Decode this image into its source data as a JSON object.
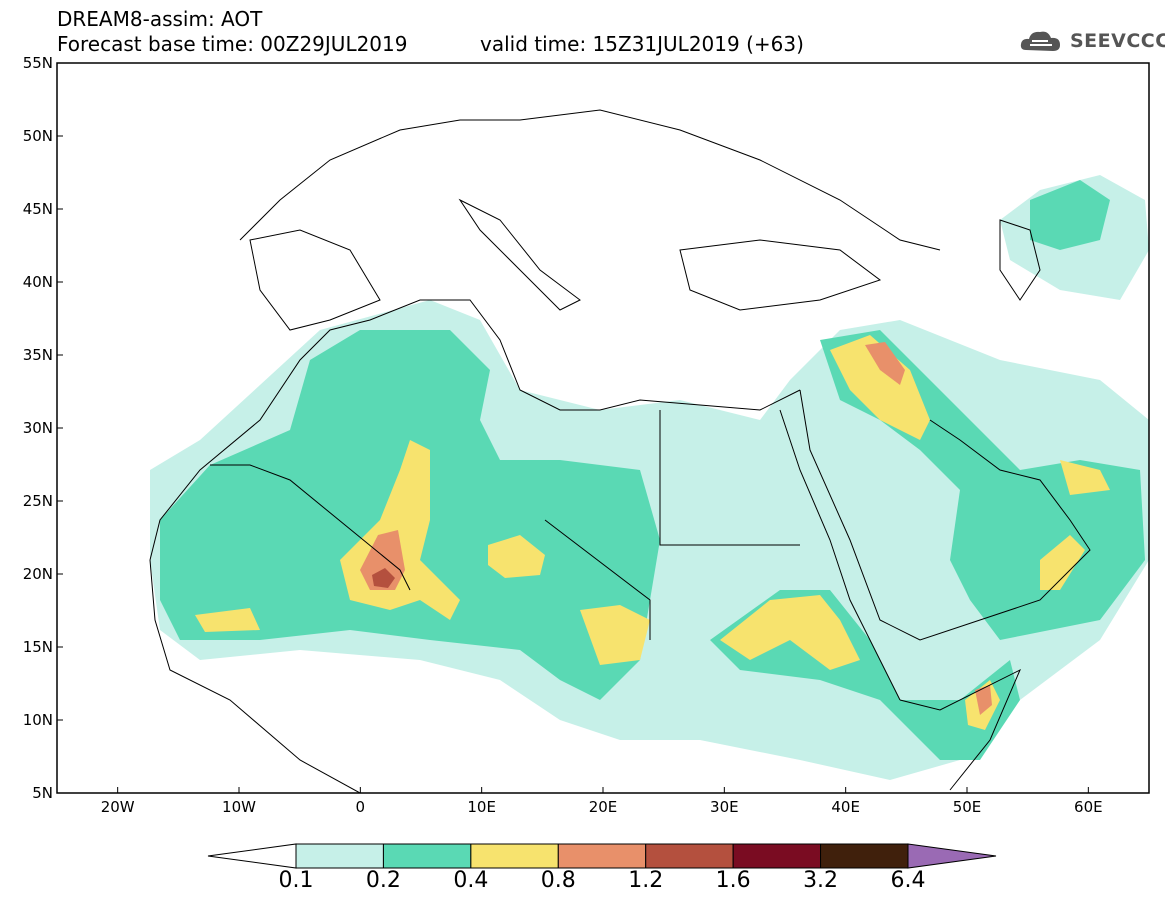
{
  "header": {
    "title": "DREAM8-assim: AOT",
    "base_time": "Forecast base time: 00Z29JUL2019",
    "valid_time": "valid time: 15Z31JUL2019 (+63)"
  },
  "logo": {
    "text": "SEEVCCC",
    "icon": "cloud-logo-icon"
  },
  "map": {
    "lat_labels": [
      "55N",
      "50N",
      "45N",
      "40N",
      "35N",
      "30N",
      "25N",
      "20N",
      "15N",
      "10N",
      "5N"
    ],
    "lon_labels": [
      "20W",
      "10W",
      "0",
      "10E",
      "20E",
      "30E",
      "40E",
      "50E",
      "60E"
    ],
    "lat_range": [
      5,
      55
    ],
    "lon_range": [
      -25,
      65
    ]
  },
  "colorbar": {
    "levels": [
      "0.1",
      "0.2",
      "0.4",
      "0.8",
      "1.2",
      "1.6",
      "3.2",
      "6.4"
    ],
    "colors": [
      "#ffffff",
      "#c6f0e8",
      "#5ad9b4",
      "#f7e36e",
      "#e8906a",
      "#b4503e",
      "#7a0c22",
      "#40200c",
      "#9a6ab4"
    ]
  }
}
